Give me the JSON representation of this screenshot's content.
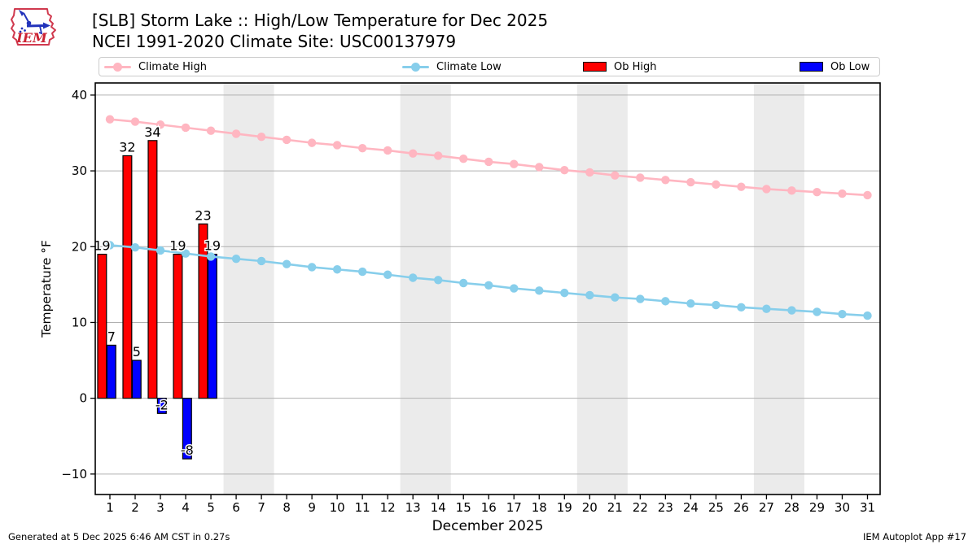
{
  "header": {
    "title": "[SLB] Storm Lake :: High/Low Temperature for Dec 2025",
    "subtitle": "NCEI 1991-2020 Climate Site: USC00137979",
    "logo_text": "IEM"
  },
  "legend": {
    "items": [
      {
        "label": "Climate High",
        "marker": "line-dot",
        "color": "#ffb6c1"
      },
      {
        "label": "Climate Low",
        "marker": "line-dot",
        "color": "#87ceeb"
      },
      {
        "label": "Ob High",
        "marker": "patch",
        "color": "#ff0000"
      },
      {
        "label": "Ob Low",
        "marker": "patch",
        "color": "#0000ff"
      }
    ]
  },
  "chart_data": {
    "type": "combo",
    "title": "[SLB] Storm Lake :: High/Low Temperature for Dec 2025",
    "subtitle": "NCEI 1991-2020 Climate Site: USC00137979",
    "xlabel": "December 2025",
    "ylabel": "Temperature °F",
    "xticks": [
      1,
      2,
      3,
      4,
      5,
      6,
      7,
      8,
      9,
      10,
      11,
      12,
      13,
      14,
      15,
      16,
      17,
      18,
      19,
      20,
      21,
      22,
      23,
      24,
      25,
      26,
      27,
      28,
      29,
      30,
      31
    ],
    "yticks": [
      -10,
      0,
      10,
      20,
      30,
      40
    ],
    "ylim": [
      -12.7,
      41.6
    ],
    "xlim": [
      0.42,
      31.5
    ],
    "grid": "horizontal",
    "grid_color": "#b0b0b0",
    "band_color": "#ebebeb",
    "weekend_bands": [
      [
        5.5,
        7.5
      ],
      [
        12.5,
        14.5
      ],
      [
        19.5,
        21.5
      ],
      [
        26.5,
        28.5
      ]
    ],
    "series": [
      {
        "name": "Climate High",
        "type": "line",
        "color": "#ffb6c1",
        "values": [
          36.8,
          36.5,
          36.1,
          35.7,
          35.3,
          34.9,
          34.5,
          34.1,
          33.7,
          33.4,
          33.0,
          32.7,
          32.3,
          32.0,
          31.6,
          31.2,
          30.9,
          30.5,
          30.1,
          29.8,
          29.4,
          29.1,
          28.8,
          28.5,
          28.2,
          27.9,
          27.6,
          27.4,
          27.2,
          27.0,
          26.8
        ]
      },
      {
        "name": "Climate Low",
        "type": "line",
        "color": "#87ceeb",
        "values": [
          20.2,
          19.9,
          19.5,
          19.1,
          18.7,
          18.4,
          18.1,
          17.7,
          17.3,
          17.0,
          16.7,
          16.3,
          15.9,
          15.6,
          15.2,
          14.9,
          14.5,
          14.2,
          13.9,
          13.6,
          13.3,
          13.1,
          12.8,
          12.5,
          12.3,
          12.0,
          11.8,
          11.6,
          11.4,
          11.1,
          10.9
        ]
      },
      {
        "name": "Ob High",
        "type": "bar",
        "color": "#ff0000",
        "edge_color": "#000000",
        "days": [
          1,
          2,
          3,
          4,
          5
        ],
        "values": [
          19,
          32,
          34,
          19,
          23
        ]
      },
      {
        "name": "Ob Low",
        "type": "bar",
        "color": "#0000ff",
        "edge_color": "#000000",
        "days": [
          1,
          2,
          3,
          4,
          5
        ],
        "values": [
          7,
          5,
          -2,
          -8,
          19
        ]
      }
    ]
  },
  "footer": {
    "left": "Generated at 5 Dec 2025 6:46 AM CST in 0.27s",
    "right": "IEM Autoplot App #17"
  }
}
